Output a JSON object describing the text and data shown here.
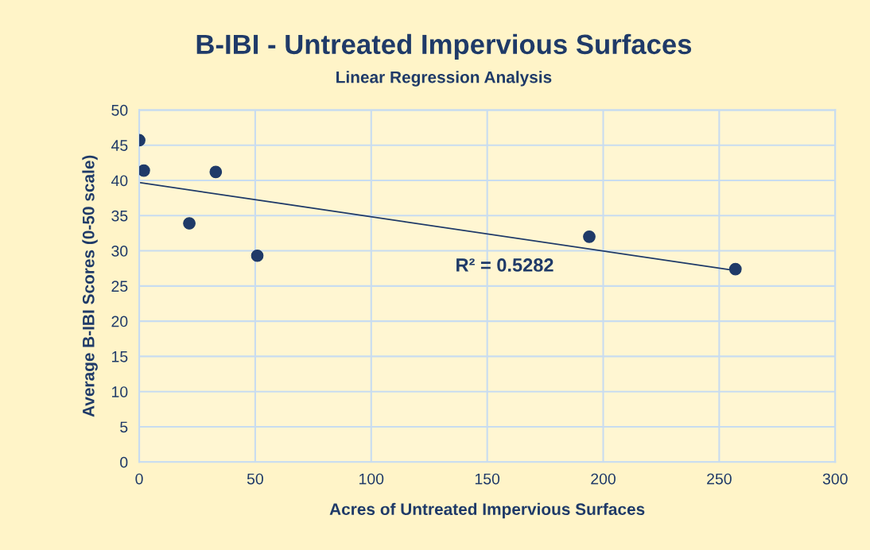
{
  "chart_data": {
    "type": "scatter",
    "title": "B-IBI - Untreated Impervious Surfaces",
    "subtitle": "Linear Regression Analysis",
    "xlabel": "Acres of Untreated Impervious Surfaces",
    "ylabel": "Average B-IBI Scores (0-50 scale)",
    "series": [
      {
        "marker": "circle",
        "color": "#1f3a68",
        "x": [
          0,
          2,
          21.6,
          33,
          50.9,
          194,
          257
        ],
        "values": [
          45.7,
          41.4,
          33.9,
          41.2,
          29.3,
          32.0,
          27.4
        ]
      },
      {
        "type": "line",
        "color": "#1f3a68",
        "x": [
          0,
          257
        ],
        "values": [
          39.7,
          27.2
        ]
      }
    ],
    "annotations": [
      "R² = 0.5282"
    ],
    "xlim": [
      0,
      300
    ],
    "xticks": [
      0,
      50,
      100,
      150,
      200,
      250,
      300
    ],
    "ylim": [
      0,
      50
    ],
    "yticks": [
      0,
      5,
      10,
      15,
      20,
      25,
      30,
      35,
      40,
      45,
      50
    ],
    "grid": true,
    "line_style": "solid",
    "legend": false
  }
}
